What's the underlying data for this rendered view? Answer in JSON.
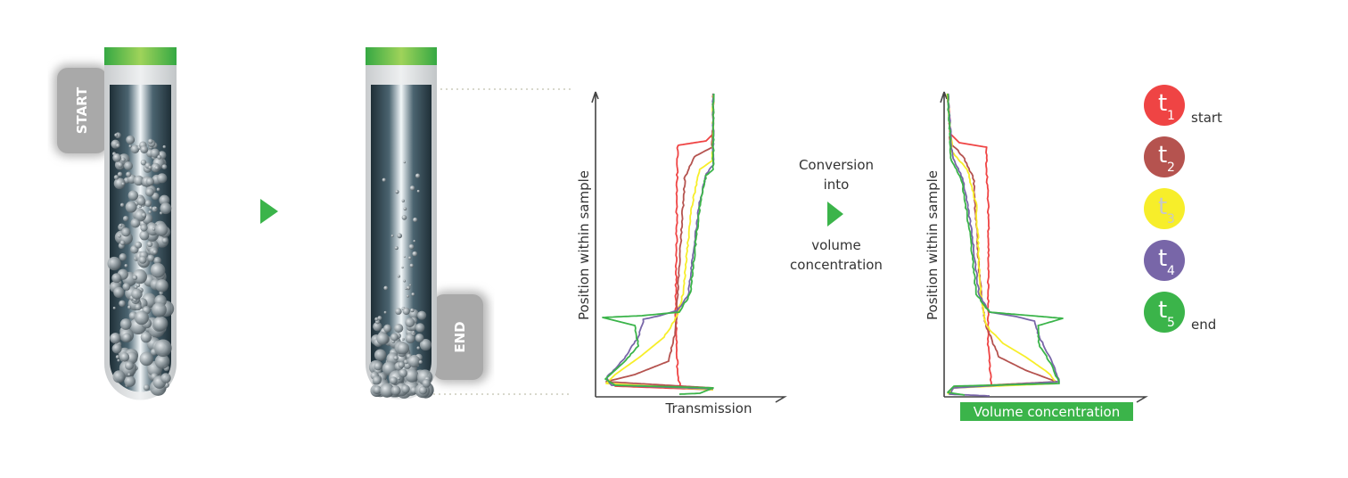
{
  "tubes": {
    "start_label": "START",
    "end_label": "END"
  },
  "transmission_chart": {
    "ylabel": "Position within sample",
    "xlabel": "Transmission"
  },
  "conversion": {
    "line1": "Conversion",
    "line2": "into",
    "line3": "volume",
    "line4": "concentration"
  },
  "concentration_chart": {
    "ylabel": "Position within sample",
    "xlabel": "Volume concentration",
    "xlabel_bg": "#3bb44a"
  },
  "legend": [
    {
      "t": "t",
      "sub": "1",
      "note": "start",
      "color": "#ef4444",
      "text_color": "#ffffff"
    },
    {
      "t": "t",
      "sub": "2",
      "note": "",
      "color": "#b5534f",
      "text_color": "#ffffff"
    },
    {
      "t": "t",
      "sub": "3",
      "note": "",
      "color": "#f7ee2a",
      "text_color": "#c8c8c8"
    },
    {
      "t": "t",
      "sub": "4",
      "note": "",
      "color": "#7866a8",
      "text_color": "#ffffff"
    },
    {
      "t": "t",
      "sub": "5",
      "note": "end",
      "color": "#3bb44a",
      "text_color": "#ffffff"
    }
  ],
  "colors": {
    "accent": "#3bb44a",
    "cap": "#3bb44a"
  }
}
